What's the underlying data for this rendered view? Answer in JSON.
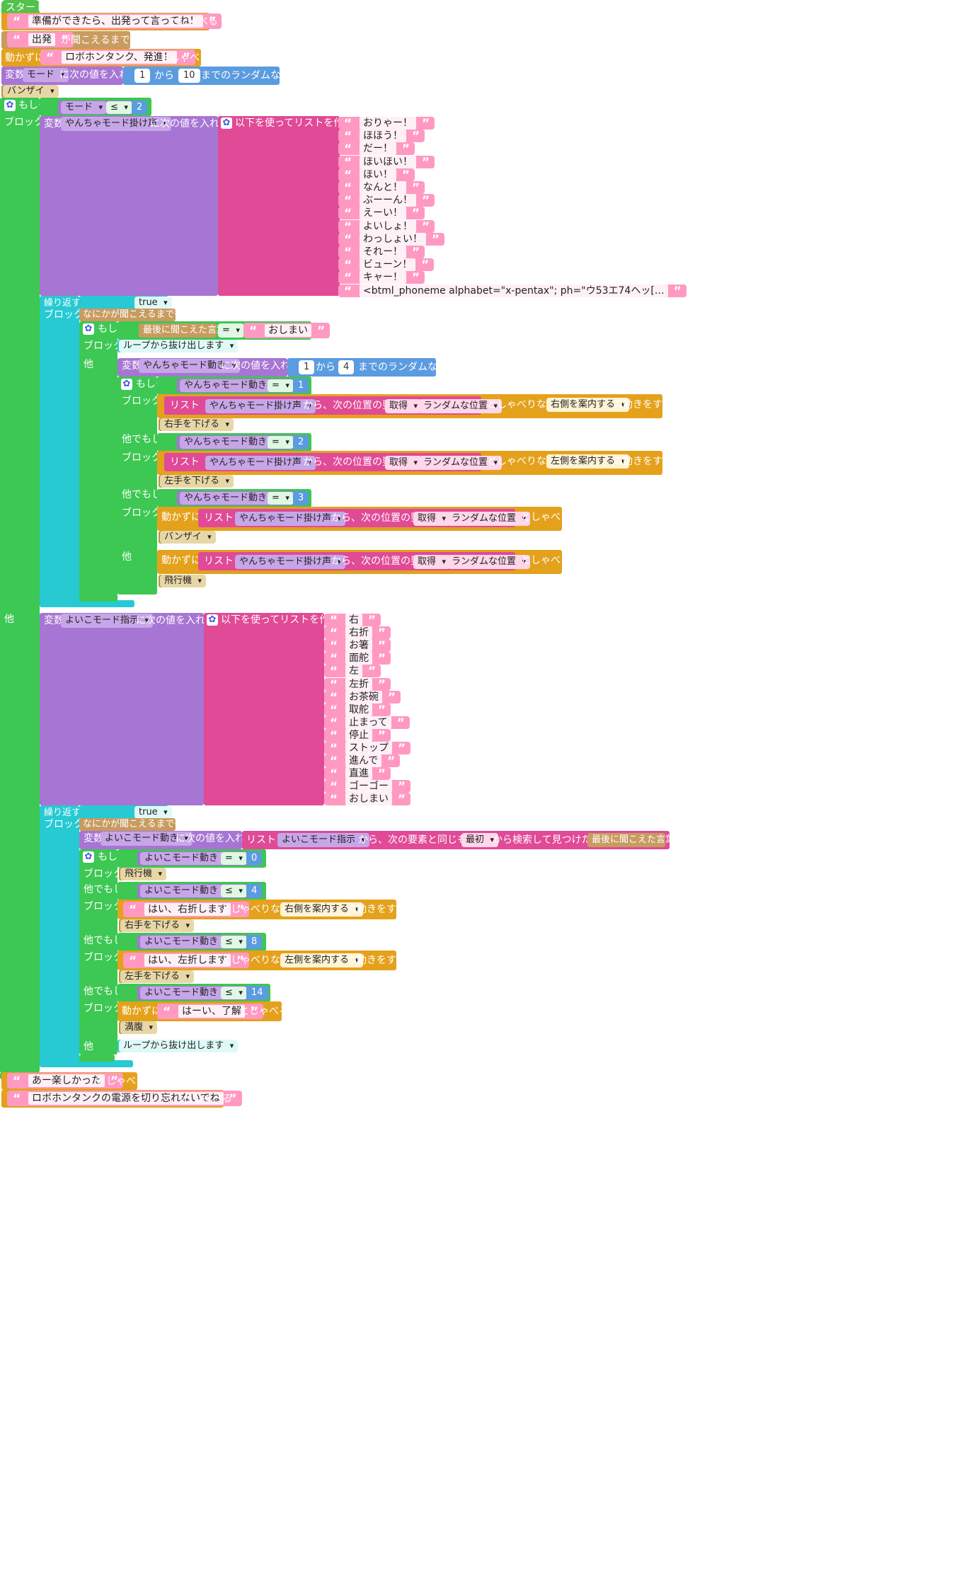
{
  "start": "スタート",
  "s1_text": "準備ができたら、出発って言ってね！",
  "s1_say": "としゃべる",
  "s2_text": "出発",
  "s2_wait": "が聞こえるまで待つ",
  "s3_prefix": "動かずに",
  "s3_text": "ロボホンタンク、発進！",
  "s3_say": "としゃべる",
  "s4_var": "変数",
  "s4_var_name": "モード",
  "s4_assign": "に次の値を入れる",
  "s4_from": "1",
  "s4_kara": "から",
  "s4_to": "10",
  "s4_rand": "までのランダムな整数",
  "banzai": "バンザイ",
  "if_label": "もしも",
  "block_label": "ブロック",
  "else_label": "他",
  "elseif_label": "他でもしも",
  "cond1_var": "モード",
  "cond1_op": "≤",
  "cond1_val": "2",
  "yancha_var": "やんちゃモード掛け声",
  "make_list": "以下を使ってリストを作成：",
  "yancha_items": [
    "おりゃー！",
    "ほほう！",
    "だー！",
    "ほいほい！",
    "ほい！",
    "なんと！",
    "ぶーーん！",
    "えーい！",
    "よいしょ！",
    "わっしょい！",
    "それー！",
    "ビューン！",
    "キャー！",
    "<btml_phoneme alphabet=\"x-pentax\"; ph=\"ウ53エ74ヘッ[…"
  ],
  "repeat": "繰り返す：続ける条件",
  "true_val": "true",
  "wait_any": "なにかが聞こえるまで待つ",
  "last_heard": "最後に聞こえた言葉",
  "eq": "=",
  "oshimai": "おしまい",
  "break_loop": "ループから抜け出します",
  "yancha_move": "やんちゃモード動き",
  "y_from": "1",
  "y_to": "4",
  "list_word": "リスト",
  "from_pos": "から、次の位置の要素を",
  "get": "取得",
  "random_pos": "ランダムな位置",
  "while_talk": "としゃべりながら",
  "guide_right": "右側を案内する",
  "guide_left": "左側を案内する",
  "do_motion": "の動きをする",
  "right_down": "右手を下げる",
  "left_down": "左手を下げる",
  "still": "動かずに",
  "say": "としゃべる",
  "airplane": "飛行機",
  "yc_v1": "1",
  "yc_v2": "2",
  "yc_v3": "3",
  "yoiko_var": "よいこモード指示",
  "yoiko_items": [
    "右",
    "右折",
    "お箸",
    "面舵",
    "左",
    "左折",
    "お茶碗",
    "取舵",
    "止まって",
    "停止",
    "ストップ",
    "進んで",
    "直進",
    "ゴーゴー",
    "おしまい"
  ],
  "yoiko_move": "よいこモード動き",
  "find_same": "から、次の要素と同じものを、",
  "first": "最初",
  "found_pos": "から検索して見つけた位置",
  "yk_v0": "0",
  "yk_v4": "4",
  "yk_v8": "8",
  "yk_v14": "14",
  "le": "≤",
  "right_turn": "はい、右折します",
  "left_turn": "はい、左折します",
  "ok": "はーい、了解",
  "full": "満腹",
  "end1": "あー楽しかった",
  "end2": "ロボホンタンクの電源を切り忘れないでね",
  "colors": {
    "say": "#e4a11b",
    "wait": "#c89b5f",
    "variable": "#a775d3",
    "if": "#3dc753",
    "loop": "#27c9d3",
    "list": "#e04a96",
    "math": "#5b9be0",
    "motion": "#b5963e"
  }
}
